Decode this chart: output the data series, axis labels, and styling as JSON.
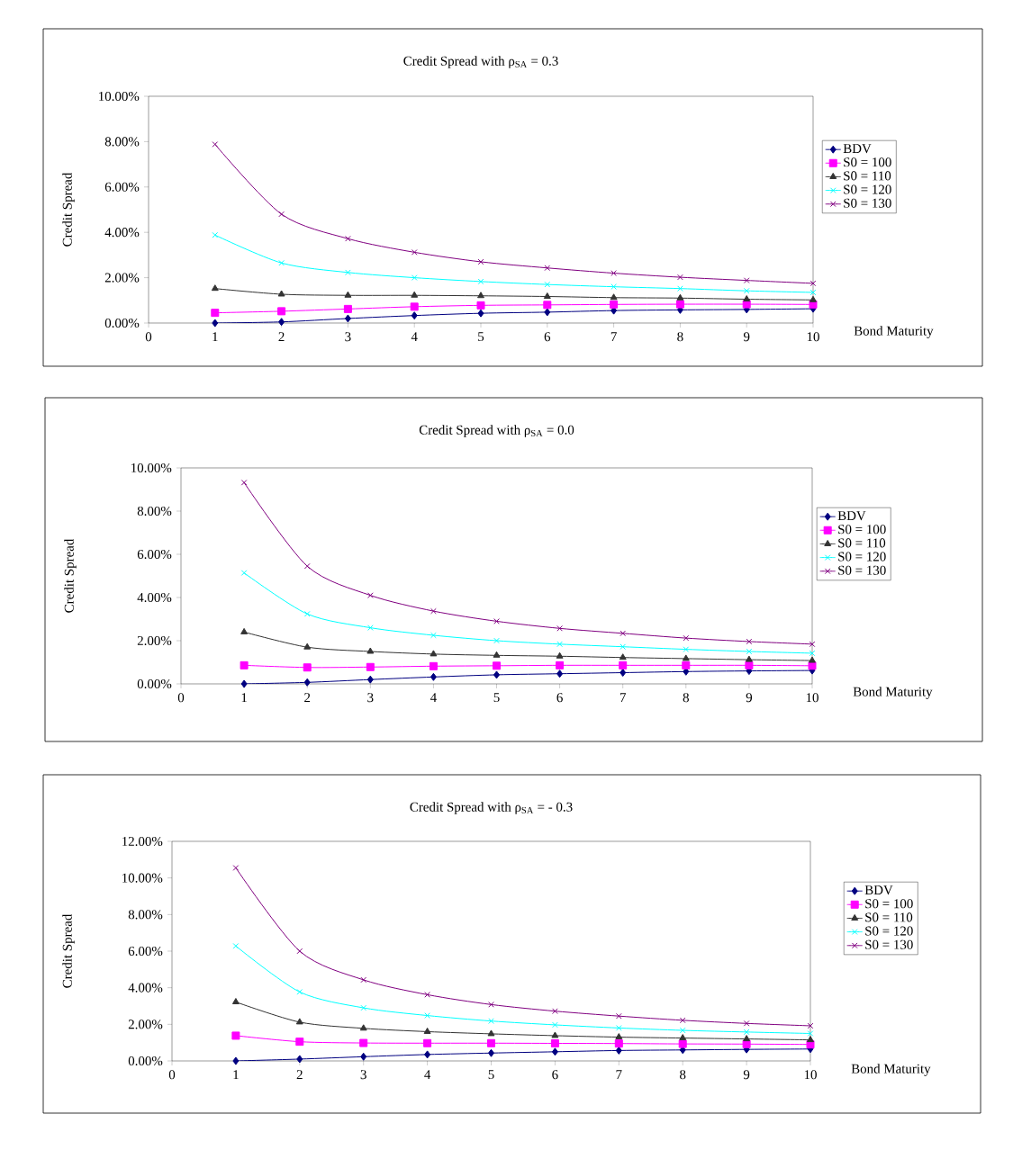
{
  "chart_data": [
    {
      "type": "line",
      "title": "Credit Spread with    ρ$_{SA}$ = 0.3",
      "xlabel": "Bond Maturity",
      "ylabel": "Credit   Spread",
      "x": [
        1,
        2,
        3,
        4,
        5,
        6,
        7,
        8,
        9,
        10
      ],
      "xlim": [
        0,
        10
      ],
      "xticks": [
        0,
        1,
        2,
        3,
        4,
        5,
        6,
        7,
        8,
        9,
        10
      ],
      "ylim": [
        0,
        10
      ],
      "yticks": [
        {
          "value": 0,
          "label": "0.00%"
        },
        {
          "value": 2,
          "label": "2.00%"
        },
        {
          "value": 4,
          "label": "4.00%"
        },
        {
          "value": 6,
          "label": "6.00%"
        },
        {
          "value": 8,
          "label": "8.00%"
        },
        {
          "value": 10,
          "label": "10.00%"
        }
      ],
      "legend": "right",
      "series": [
        {
          "name": "BDV",
          "color": "#000080",
          "marker": "diamond",
          "values": [
            0,
            0.05,
            0.2,
            0.33,
            0.43,
            0.48,
            0.55,
            0.58,
            0.6,
            0.63
          ]
        },
        {
          "name": "S0 = 100",
          "color": "#ff00ff",
          "marker": "square",
          "values": [
            0.45,
            0.52,
            0.62,
            0.72,
            0.78,
            0.8,
            0.82,
            0.83,
            0.83,
            0.82
          ]
        },
        {
          "name": "S0 = 110",
          "color": "#333333",
          "marker": "triangle",
          "values": [
            1.52,
            1.27,
            1.22,
            1.22,
            1.2,
            1.17,
            1.12,
            1.1,
            1.05,
            1.02
          ]
        },
        {
          "name": "S0 = 120",
          "color": "#00ffff",
          "marker": "cross",
          "values": [
            3.88,
            2.65,
            2.23,
            2.0,
            1.83,
            1.7,
            1.6,
            1.52,
            1.42,
            1.35
          ]
        },
        {
          "name": "S0 = 130",
          "color": "#800080",
          "marker": "cross",
          "values": [
            7.88,
            4.8,
            3.72,
            3.12,
            2.7,
            2.43,
            2.2,
            2.02,
            1.88,
            1.75
          ]
        }
      ]
    },
    {
      "type": "line",
      "title": "Credit Spread with    ρ$_{SA}$ = 0.0",
      "xlabel": "Bond Maturity",
      "ylabel": "Credit   Spread",
      "x": [
        1,
        2,
        3,
        4,
        5,
        6,
        7,
        8,
        9,
        10
      ],
      "xlim": [
        0,
        10
      ],
      "xticks": [
        0,
        1,
        2,
        3,
        4,
        5,
        6,
        7,
        8,
        9,
        10
      ],
      "ylim": [
        0,
        10
      ],
      "yticks": [
        {
          "value": 0,
          "label": "0.00%"
        },
        {
          "value": 2,
          "label": "2.00%"
        },
        {
          "value": 4,
          "label": "4.00%"
        },
        {
          "value": 6,
          "label": "6.00%"
        },
        {
          "value": 8,
          "label": "8.00%"
        },
        {
          "value": 10,
          "label": "10.00%"
        }
      ],
      "legend": "right",
      "series": [
        {
          "name": "BDV",
          "color": "#000080",
          "marker": "diamond",
          "values": [
            0,
            0.07,
            0.2,
            0.32,
            0.42,
            0.47,
            0.52,
            0.57,
            0.6,
            0.62
          ]
        },
        {
          "name": "S0 = 100",
          "color": "#ff00ff",
          "marker": "square",
          "values": [
            0.86,
            0.76,
            0.78,
            0.82,
            0.84,
            0.86,
            0.86,
            0.86,
            0.86,
            0.84
          ]
        },
        {
          "name": "S0 = 110",
          "color": "#333333",
          "marker": "triangle",
          "values": [
            2.4,
            1.7,
            1.5,
            1.38,
            1.32,
            1.28,
            1.22,
            1.17,
            1.12,
            1.08
          ]
        },
        {
          "name": "S0 = 120",
          "color": "#00ffff",
          "marker": "cross",
          "values": [
            5.14,
            3.24,
            2.6,
            2.25,
            2.0,
            1.84,
            1.72,
            1.6,
            1.5,
            1.42
          ]
        },
        {
          "name": "S0 = 130",
          "color": "#800080",
          "marker": "cross",
          "values": [
            9.32,
            5.45,
            4.1,
            3.37,
            2.9,
            2.57,
            2.34,
            2.12,
            1.96,
            1.84
          ]
        }
      ]
    },
    {
      "type": "line",
      "title": "Credit Spread with    ρ$_{SA}$ = - 0.3",
      "xlabel": "Bond Maturity",
      "ylabel": "Credit   Spread",
      "x": [
        1,
        2,
        3,
        4,
        5,
        6,
        7,
        8,
        9,
        10
      ],
      "xlim": [
        0,
        10
      ],
      "xticks": [
        0,
        1,
        2,
        3,
        4,
        5,
        6,
        7,
        8,
        9,
        10
      ],
      "ylim": [
        0,
        12
      ],
      "yticks": [
        {
          "value": 0,
          "label": "0.00%"
        },
        {
          "value": 2,
          "label": "2.00%"
        },
        {
          "value": 4,
          "label": "4.00%"
        },
        {
          "value": 6,
          "label": "6.00%"
        },
        {
          "value": 8,
          "label": "8.00%"
        },
        {
          "value": 10,
          "label": "10.00%"
        },
        {
          "value": 12,
          "label": "12.00%"
        }
      ],
      "legend": "right",
      "series": [
        {
          "name": "BDV",
          "color": "#000080",
          "marker": "diamond",
          "values": [
            0,
            0.1,
            0.23,
            0.35,
            0.43,
            0.5,
            0.57,
            0.6,
            0.63,
            0.65
          ]
        },
        {
          "name": "S0 = 100",
          "color": "#ff00ff",
          "marker": "square",
          "values": [
            1.38,
            1.05,
            0.98,
            0.97,
            0.97,
            0.96,
            0.95,
            0.93,
            0.92,
            0.9
          ]
        },
        {
          "name": "S0 = 110",
          "color": "#333333",
          "marker": "triangle",
          "values": [
            3.22,
            2.12,
            1.78,
            1.6,
            1.48,
            1.38,
            1.3,
            1.25,
            1.2,
            1.15
          ]
        },
        {
          "name": "S0 = 120",
          "color": "#00ffff",
          "marker": "cross",
          "values": [
            6.28,
            3.77,
            2.9,
            2.48,
            2.18,
            1.97,
            1.8,
            1.67,
            1.58,
            1.5
          ]
        },
        {
          "name": "S0 = 130",
          "color": "#800080",
          "marker": "cross",
          "values": [
            10.55,
            6.0,
            4.43,
            3.62,
            3.08,
            2.72,
            2.45,
            2.22,
            2.05,
            1.92
          ]
        }
      ]
    }
  ]
}
